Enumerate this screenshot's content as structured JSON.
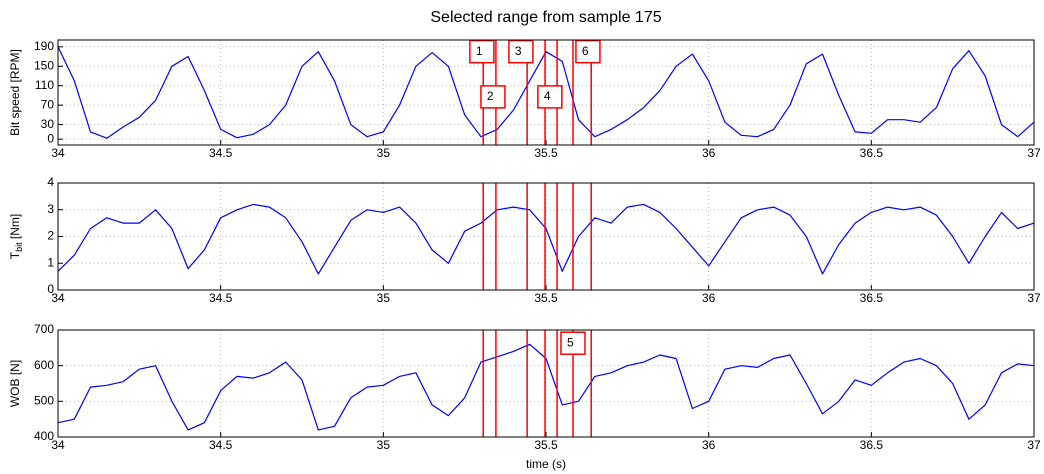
{
  "chart_data": [
    {
      "type": "line",
      "title": "Selected range from sample 175",
      "ylabel": {
        "text": "Bit speed [RPM]"
      },
      "x": [
        34,
        34.05,
        34.1,
        34.15,
        34.2,
        34.25,
        34.3,
        34.35,
        34.4,
        34.45,
        34.5,
        34.55,
        34.6,
        34.65,
        34.7,
        34.75,
        34.8,
        34.85,
        34.9,
        34.95,
        35,
        35.05,
        35.1,
        35.15,
        35.2,
        35.25,
        35.3,
        35.35,
        35.4,
        35.45,
        35.5,
        35.55,
        35.6,
        35.65,
        35.7,
        35.75,
        35.8,
        35.85,
        35.9,
        35.95,
        36,
        36.05,
        36.1,
        36.15,
        36.2,
        36.25,
        36.3,
        36.35,
        36.4,
        36.45,
        36.5,
        36.55,
        36.6,
        36.65,
        36.7,
        36.75,
        36.8,
        36.85,
        36.9,
        36.95,
        37
      ],
      "series": [
        {
          "color": "#0000ff",
          "values": [
            190,
            120,
            15,
            2,
            25,
            45,
            80,
            150,
            170,
            100,
            20,
            3,
            10,
            30,
            70,
            150,
            180,
            120,
            30,
            5,
            15,
            70,
            150,
            178,
            150,
            50,
            5,
            20,
            60,
            120,
            180,
            160,
            40,
            5,
            20,
            40,
            65,
            100,
            150,
            175,
            120,
            35,
            8,
            5,
            20,
            70,
            155,
            175,
            90,
            15,
            12,
            40,
            40,
            35,
            65,
            145,
            182,
            130,
            30,
            5,
            35
          ]
        }
      ],
      "xlim": [
        34,
        37
      ],
      "xticks": [
        34,
        34.5,
        35,
        35.5,
        36,
        36.5,
        37
      ],
      "ylim": [
        -12,
        204
      ],
      "yticks": [
        0,
        30,
        70,
        110,
        150,
        190
      ],
      "grid": true,
      "vlines": {
        "color": "#ff0000",
        "x": [
          35.307,
          35.346,
          35.442,
          35.497,
          35.534,
          35.583,
          35.639
        ]
      },
      "annotations": [
        {
          "label": "1",
          "x": 35.266,
          "y": 180
        },
        {
          "label": "2",
          "x": 35.3,
          "y": 87
        },
        {
          "label": "3",
          "x": 35.386,
          "y": 180
        },
        {
          "label": "4",
          "x": 35.475,
          "y": 87
        },
        {
          "label": "6",
          "x": 35.592,
          "y": 180
        }
      ]
    },
    {
      "type": "line",
      "ylabel": {
        "text": "T",
        "sub": "bit",
        "rest": " [Nm]"
      },
      "x": [
        34,
        34.05,
        34.1,
        34.15,
        34.2,
        34.25,
        34.3,
        34.35,
        34.4,
        34.45,
        34.5,
        34.55,
        34.6,
        34.65,
        34.7,
        34.75,
        34.8,
        34.85,
        34.9,
        34.95,
        35,
        35.05,
        35.1,
        35.15,
        35.2,
        35.25,
        35.3,
        35.35,
        35.4,
        35.45,
        35.5,
        35.55,
        35.6,
        35.65,
        35.7,
        35.75,
        35.8,
        35.85,
        35.9,
        35.95,
        36,
        36.05,
        36.1,
        36.15,
        36.2,
        36.25,
        36.3,
        36.35,
        36.4,
        36.45,
        36.5,
        36.55,
        36.6,
        36.65,
        36.7,
        36.75,
        36.8,
        36.85,
        36.9,
        36.95,
        37
      ],
      "series": [
        {
          "color": "#0000ff",
          "values": [
            0.7,
            1.3,
            2.3,
            2.7,
            2.5,
            2.5,
            3.0,
            2.3,
            0.8,
            1.5,
            2.7,
            3.0,
            3.2,
            3.1,
            2.7,
            1.8,
            0.6,
            1.6,
            2.6,
            3.0,
            2.9,
            3.1,
            2.5,
            1.5,
            1.0,
            2.2,
            2.5,
            3.0,
            3.1,
            3.0,
            2.3,
            0.7,
            2.0,
            2.7,
            2.5,
            3.1,
            3.2,
            2.9,
            2.3,
            1.6,
            0.9,
            1.8,
            2.7,
            3.0,
            3.1,
            2.8,
            2.0,
            0.6,
            1.7,
            2.5,
            2.9,
            3.1,
            3.0,
            3.1,
            2.8,
            2.0,
            1.0,
            2.0,
            2.9,
            2.3,
            2.5
          ]
        }
      ],
      "xlim": [
        34,
        37
      ],
      "xticks": [
        34,
        34.5,
        35,
        35.5,
        36,
        36.5,
        37
      ],
      "ylim": [
        0,
        4
      ],
      "yticks": [
        0,
        1,
        2,
        3,
        4
      ],
      "grid": true,
      "vlines": {
        "color": "#ff0000",
        "x": [
          35.307,
          35.346,
          35.442,
          35.497,
          35.534,
          35.583,
          35.639
        ]
      }
    },
    {
      "type": "line",
      "ylabel": {
        "text": "WOB [N]"
      },
      "xlabel": "time (s)",
      "x": [
        34,
        34.05,
        34.1,
        34.15,
        34.2,
        34.25,
        34.3,
        34.35,
        34.4,
        34.45,
        34.5,
        34.55,
        34.6,
        34.65,
        34.7,
        34.75,
        34.8,
        34.85,
        34.9,
        34.95,
        35,
        35.05,
        35.1,
        35.15,
        35.2,
        35.25,
        35.3,
        35.35,
        35.4,
        35.45,
        35.5,
        35.55,
        35.6,
        35.65,
        35.7,
        35.75,
        35.8,
        35.85,
        35.9,
        35.95,
        36,
        36.05,
        36.1,
        36.15,
        36.2,
        36.25,
        36.3,
        36.35,
        36.4,
        36.45,
        36.5,
        36.55,
        36.6,
        36.65,
        36.7,
        36.75,
        36.8,
        36.85,
        36.9,
        36.95,
        37
      ],
      "series": [
        {
          "color": "#0000ff",
          "values": [
            440,
            450,
            540,
            545,
            555,
            590,
            600,
            500,
            420,
            440,
            530,
            570,
            565,
            580,
            610,
            560,
            420,
            430,
            510,
            540,
            545,
            570,
            580,
            490,
            460,
            510,
            610,
            625,
            640,
            660,
            620,
            490,
            500,
            570,
            580,
            600,
            610,
            630,
            620,
            480,
            500,
            590,
            600,
            595,
            620,
            630,
            550,
            465,
            500,
            560,
            545,
            580,
            610,
            620,
            600,
            550,
            450,
            490,
            580,
            605,
            600
          ]
        }
      ],
      "xlim": [
        34,
        37
      ],
      "xticks": [
        34,
        34.5,
        35,
        35.5,
        36,
        36.5,
        37
      ],
      "ylim": [
        400,
        700
      ],
      "yticks": [
        400,
        500,
        600,
        700
      ],
      "grid": true,
      "vlines": {
        "color": "#ff0000",
        "x": [
          35.307,
          35.346,
          35.442,
          35.497,
          35.534,
          35.583,
          35.639
        ]
      },
      "annotations": [
        {
          "label": "5",
          "x": 35.546,
          "y": 663
        }
      ]
    }
  ]
}
